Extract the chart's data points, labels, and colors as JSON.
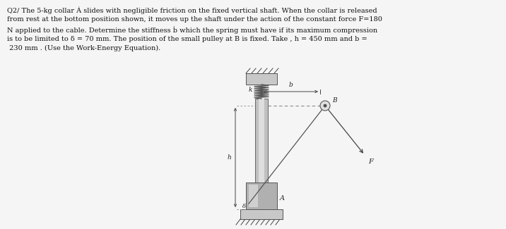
{
  "title_lines": [
    "Q2/ The 5-kg collar Á slides with negligible friction on the fixed vertical shaft. When the collar is released",
    "from rest at the bottom position shown, it moves up the shaft under the action of the constant force F=180",
    "N applied to the cable. Determine the stiffness ḃ which the spring must have if its maximum compression",
    "is to be limited to δ = 70 mm. The position of the small pulley at B is fixed. Take ,ℎ = 450 mm and b =",
    "230 mm . (Use the Work-Energy Equation)."
  ],
  "bg_color": "#f5f5f5",
  "text_color": "#111111",
  "fg_color": "#333333",
  "shaft_gray": "#c0c0c0",
  "shaft_light": "#dedede",
  "collar_gray": "#b0b0b0",
  "spring_color": "#555555",
  "line_color": "#555555",
  "dim_color": "#444444",
  "base_gray": "#c8c8c8"
}
